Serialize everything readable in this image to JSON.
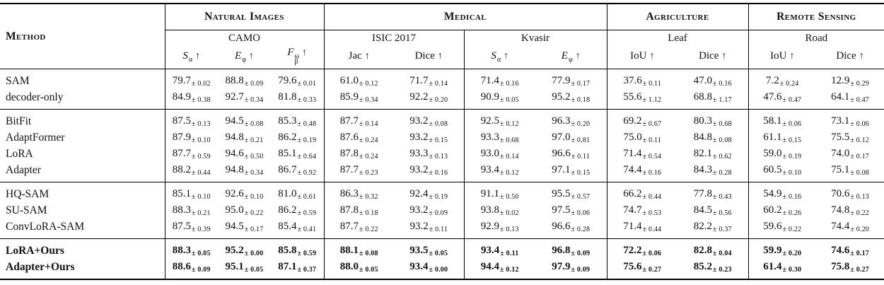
{
  "colors": {
    "text": "#111111",
    "background": "#ffffff",
    "rule": "#000000"
  },
  "table": {
    "method_header": "Method",
    "pm": "±",
    "groups": [
      {
        "label": "Natural Images",
        "datasets": [
          {
            "name": "CAMO",
            "metrics": [
              {
                "base": "S",
                "sub": "α",
                "sup": "",
                "italic": true,
                "arrow": "↑"
              },
              {
                "base": "E",
                "sub": "φ",
                "sup": "",
                "italic": true,
                "arrow": "↑"
              },
              {
                "base": "F",
                "sub": "β",
                "sup": "ω",
                "italic": true,
                "arrow": "↑"
              }
            ]
          }
        ]
      },
      {
        "label": "Medical",
        "datasets": [
          {
            "name": "ISIC 2017",
            "metrics": [
              {
                "base": "Jac",
                "sub": "",
                "sup": "",
                "italic": false,
                "arrow": "↑"
              },
              {
                "base": "Dice",
                "sub": "",
                "sup": "",
                "italic": false,
                "arrow": "↑"
              }
            ]
          },
          {
            "name": "Kvasir",
            "metrics": [
              {
                "base": "S",
                "sub": "α",
                "sup": "",
                "italic": true,
                "arrow": "↑"
              },
              {
                "base": "E",
                "sub": "φ",
                "sup": "",
                "italic": true,
                "arrow": "↑"
              }
            ]
          }
        ]
      },
      {
        "label": "Agriculture",
        "datasets": [
          {
            "name": "Leaf",
            "metrics": [
              {
                "base": "IoU",
                "sub": "",
                "sup": "",
                "italic": false,
                "arrow": "↑"
              },
              {
                "base": "Dice",
                "sub": "",
                "sup": "",
                "italic": false,
                "arrow": "↑"
              }
            ]
          }
        ]
      },
      {
        "label": "Remote Sensing",
        "datasets": [
          {
            "name": "Road",
            "metrics": [
              {
                "base": "IoU",
                "sub": "",
                "sup": "",
                "italic": false,
                "arrow": "↑"
              },
              {
                "base": "Dice",
                "sub": "",
                "sup": "",
                "italic": false,
                "arrow": "↑"
              }
            ]
          }
        ]
      }
    ],
    "blocks": [
      {
        "bold": false,
        "rows": [
          {
            "method": "SAM",
            "cells": [
              [
                "79.7",
                "± 0.02"
              ],
              [
                "88.8",
                "± 0.09"
              ],
              [
                "79.6",
                "± 0.01"
              ],
              [
                "61.0",
                "± 0.12"
              ],
              [
                "71.7",
                "± 0.14"
              ],
              [
                "71.4",
                "± 0.16"
              ],
              [
                "77.9",
                "± 0.17"
              ],
              [
                "37.6",
                "± 0.11"
              ],
              [
                "47.0",
                "± 0.16"
              ],
              [
                "7.2",
                "± 0.24"
              ],
              [
                "12.9",
                "± 0.29"
              ]
            ]
          },
          {
            "method": "decoder-only",
            "cells": [
              [
                "84.9",
                "± 0.38"
              ],
              [
                "92.7",
                "± 0.34"
              ],
              [
                "81.8",
                "± 0.33"
              ],
              [
                "85.9",
                "± 0.34"
              ],
              [
                "92.2",
                "± 0.20"
              ],
              [
                "90.9",
                "± 0.05"
              ],
              [
                "95.2",
                "± 0.18"
              ],
              [
                "55.6",
                "± 1.12"
              ],
              [
                "68.8",
                "± 1.17"
              ],
              [
                "47.6",
                "± 0.47"
              ],
              [
                "64.1",
                "± 0.47"
              ]
            ]
          }
        ]
      },
      {
        "bold": false,
        "rows": [
          {
            "method": "BitFit",
            "cells": [
              [
                "87.5",
                "± 0.13"
              ],
              [
                "94.5",
                "± 0.08"
              ],
              [
                "85.3",
                "± 0.48"
              ],
              [
                "87.7",
                "± 0.14"
              ],
              [
                "93.2",
                "± 0.08"
              ],
              [
                "92.5",
                "± 0.12"
              ],
              [
                "96.3",
                "± 0.20"
              ],
              [
                "69.2",
                "± 0.67"
              ],
              [
                "80.3",
                "± 0.68"
              ],
              [
                "58.1",
                "± 0.06"
              ],
              [
                "73.1",
                "± 0.06"
              ]
            ]
          },
          {
            "method": "AdaptFormer",
            "cells": [
              [
                "87.9",
                "± 0.10"
              ],
              [
                "94.8",
                "± 0.21"
              ],
              [
                "86.2",
                "± 0.19"
              ],
              [
                "87.6",
                "± 0.24"
              ],
              [
                "93.2",
                "± 0.15"
              ],
              [
                "93.3",
                "± 0.68"
              ],
              [
                "97.0",
                "± 0.81"
              ],
              [
                "75.0",
                "± 0.11"
              ],
              [
                "84.8",
                "± 0.08"
              ],
              [
                "61.1",
                "± 0.15"
              ],
              [
                "75.5",
                "± 0.12"
              ]
            ]
          },
          {
            "method": "LoRA",
            "cells": [
              [
                "87.7",
                "± 0.59"
              ],
              [
                "94.6",
                "± 0.50"
              ],
              [
                "85.1",
                "± 0.64"
              ],
              [
                "87.8",
                "± 0.24"
              ],
              [
                "93.3",
                "± 0.13"
              ],
              [
                "93.0",
                "± 0.14"
              ],
              [
                "96.6",
                "± 0.11"
              ],
              [
                "71.4",
                "± 0.54"
              ],
              [
                "82.1",
                "± 0.62"
              ],
              [
                "59.0",
                "± 0.19"
              ],
              [
                "74.0",
                "± 0.17"
              ]
            ]
          },
          {
            "method": "Adapter",
            "cells": [
              [
                "88.2",
                "± 0.44"
              ],
              [
                "94.8",
                "± 0.34"
              ],
              [
                "86.7",
                "± 0.92"
              ],
              [
                "87.7",
                "± 0.23"
              ],
              [
                "93.2",
                "± 0.16"
              ],
              [
                "93.4",
                "± 0.12"
              ],
              [
                "97.1",
                "± 0.15"
              ],
              [
                "74.4",
                "± 0.16"
              ],
              [
                "84.3",
                "± 0.28"
              ],
              [
                "60.5",
                "± 0.10"
              ],
              [
                "75.1",
                "± 0.08"
              ]
            ]
          }
        ]
      },
      {
        "bold": false,
        "rows": [
          {
            "method": "HQ-SAM",
            "cells": [
              [
                "85.1",
                "± 0.10"
              ],
              [
                "92.6",
                "± 0.10"
              ],
              [
                "81.0",
                "± 0.61"
              ],
              [
                "86.3",
                "± 0.32"
              ],
              [
                "92.4",
                "± 0.19"
              ],
              [
                "91.1",
                "± 0.50"
              ],
              [
                "95.5",
                "± 0.57"
              ],
              [
                "66.2",
                "± 0.44"
              ],
              [
                "77.8",
                "± 0.43"
              ],
              [
                "54.9",
                "± 0.16"
              ],
              [
                "70.6",
                "± 0.13"
              ]
            ]
          },
          {
            "method": "SU-SAM",
            "cells": [
              [
                "88.3",
                "± 0.21"
              ],
              [
                "95.0",
                "± 0.22"
              ],
              [
                "86.2",
                "± 0.59"
              ],
              [
                "87.8",
                "± 0.18"
              ],
              [
                "93.2",
                "± 0.09"
              ],
              [
                "93.8",
                "± 0.02"
              ],
              [
                "97.5",
                "± 0.06"
              ],
              [
                "74.7",
                "± 0.53"
              ],
              [
                "84.5",
                "± 0.56"
              ],
              [
                "60.2",
                "± 0.26"
              ],
              [
                "74.8",
                "± 0.22"
              ]
            ]
          },
          {
            "method": "ConvLoRA-SAM",
            "cells": [
              [
                "87.5",
                "± 0.39"
              ],
              [
                "94.5",
                "± 0.17"
              ],
              [
                "85.4",
                "± 0.41"
              ],
              [
                "87.7",
                "± 0.22"
              ],
              [
                "93.2",
                "± 0.11"
              ],
              [
                "92.9",
                "± 0.13"
              ],
              [
                "96.6",
                "± 0.28"
              ],
              [
                "71.4",
                "± 0.44"
              ],
              [
                "82.2",
                "± 0.37"
              ],
              [
                "59.6",
                "± 0.22"
              ],
              [
                "74.4",
                "± 0.20"
              ]
            ]
          }
        ]
      },
      {
        "bold": true,
        "rows": [
          {
            "method": "LoRA+Ours",
            "cells": [
              [
                "88.3",
                "± 0.05"
              ],
              [
                "95.2",
                "± 0.00"
              ],
              [
                "85.8",
                "± 0.59"
              ],
              [
                "88.1",
                "± 0.08"
              ],
              [
                "93.5",
                "± 0.05"
              ],
              [
                "93.4",
                "± 0.11"
              ],
              [
                "96.8",
                "± 0.09"
              ],
              [
                "72.2",
                "± 0.06"
              ],
              [
                "82.8",
                "± 0.04"
              ],
              [
                "59.9",
                "± 0.20"
              ],
              [
                "74.6",
                "± 0.17"
              ]
            ]
          },
          {
            "method": "Adapter+Ours",
            "cells": [
              [
                "88.6",
                "± 0.09"
              ],
              [
                "95.1",
                "± 0.05"
              ],
              [
                "87.1",
                "± 0.37"
              ],
              [
                "88.0",
                "± 0.05"
              ],
              [
                "93.4",
                "± 0.00"
              ],
              [
                "94.4",
                "± 0.12"
              ],
              [
                "97.9",
                "± 0.09"
              ],
              [
                "75.6",
                "± 0.27"
              ],
              [
                "85.2",
                "± 0.23"
              ],
              [
                "61.4",
                "± 0.30"
              ],
              [
                "75.8",
                "± 0.27"
              ]
            ]
          }
        ]
      }
    ]
  }
}
